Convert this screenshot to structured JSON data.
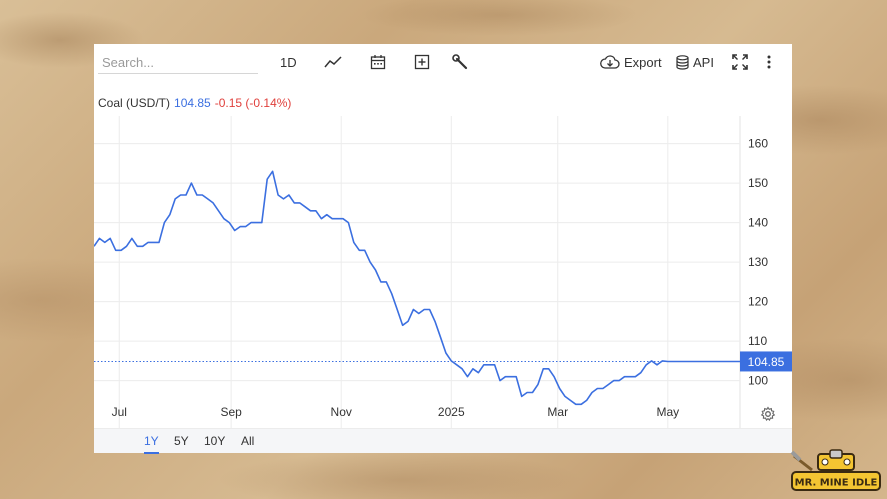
{
  "toolbar": {
    "search_placeholder": "Search...",
    "interval_label": "1D",
    "export_label": "Export",
    "api_label": "API"
  },
  "quote": {
    "name": "Coal (USD/T)",
    "price": "104.85",
    "change": "-0.15 (-0.14%)"
  },
  "ranges": [
    {
      "label": "1Y",
      "active": true
    },
    {
      "label": "5Y",
      "active": false
    },
    {
      "label": "10Y",
      "active": false
    },
    {
      "label": "All",
      "active": false
    }
  ],
  "branding": {
    "logo_text": "MR. MINE IDLE"
  },
  "colors": {
    "line": "#3b6fe0",
    "negative": "#e0403c",
    "price_tag_bg": "#3b6fe0"
  },
  "chart_data": {
    "type": "line",
    "title": "",
    "xlabel": "",
    "ylabel": "",
    "x_range": [
      "2024-06-17",
      "2025-06-10"
    ],
    "ylim": [
      88,
      167
    ],
    "yticks": [
      100,
      110,
      120,
      130,
      140,
      150,
      160
    ],
    "xticks": [
      {
        "date": "2024-07-01",
        "label": "Jul"
      },
      {
        "date": "2024-09-01",
        "label": "Sep"
      },
      {
        "date": "2024-11-01",
        "label": "Nov"
      },
      {
        "date": "2025-01-01",
        "label": "2025"
      },
      {
        "date": "2025-03-01",
        "label": "Mar"
      },
      {
        "date": "2025-05-01",
        "label": "May"
      }
    ],
    "grid": true,
    "last_value": 104.85,
    "series": [
      {
        "name": "",
        "x": [
          "2024-06-17",
          "2024-06-20",
          "2024-06-23",
          "2024-06-26",
          "2024-06-29",
          "2024-07-02",
          "2024-07-05",
          "2024-07-08",
          "2024-07-11",
          "2024-07-14",
          "2024-07-17",
          "2024-07-20",
          "2024-07-23",
          "2024-07-26",
          "2024-07-29",
          "2024-08-01",
          "2024-08-04",
          "2024-08-07",
          "2024-08-10",
          "2024-08-13",
          "2024-08-16",
          "2024-08-19",
          "2024-08-22",
          "2024-08-25",
          "2024-08-28",
          "2024-08-31",
          "2024-09-03",
          "2024-09-06",
          "2024-09-09",
          "2024-09-12",
          "2024-09-15",
          "2024-09-18",
          "2024-09-21",
          "2024-09-24",
          "2024-09-27",
          "2024-09-30",
          "2024-10-03",
          "2024-10-06",
          "2024-10-09",
          "2024-10-12",
          "2024-10-15",
          "2024-10-18",
          "2024-10-21",
          "2024-10-24",
          "2024-10-27",
          "2024-10-30",
          "2024-11-02",
          "2024-11-05",
          "2024-11-08",
          "2024-11-11",
          "2024-11-14",
          "2024-11-17",
          "2024-11-20",
          "2024-11-23",
          "2024-11-26",
          "2024-11-29",
          "2024-12-02",
          "2024-12-05",
          "2024-12-08",
          "2024-12-11",
          "2024-12-14",
          "2024-12-17",
          "2024-12-20",
          "2024-12-23",
          "2024-12-26",
          "2024-12-29",
          "2025-01-01",
          "2025-01-04",
          "2025-01-07",
          "2025-01-10",
          "2025-01-13",
          "2025-01-16",
          "2025-01-19",
          "2025-01-22",
          "2025-01-25",
          "2025-01-28",
          "2025-01-31",
          "2025-02-03",
          "2025-02-06",
          "2025-02-09",
          "2025-02-12",
          "2025-02-15",
          "2025-02-18",
          "2025-02-21",
          "2025-02-24",
          "2025-02-27",
          "2025-03-02",
          "2025-03-05",
          "2025-03-08",
          "2025-03-11",
          "2025-03-14",
          "2025-03-17",
          "2025-03-20",
          "2025-03-23",
          "2025-03-26",
          "2025-03-29",
          "2025-04-01",
          "2025-04-04",
          "2025-04-07",
          "2025-04-10",
          "2025-04-13",
          "2025-04-16",
          "2025-04-19",
          "2025-04-22",
          "2025-04-25",
          "2025-04-28",
          "2025-05-01",
          "2025-05-04",
          "2025-05-07",
          "2025-05-10",
          "2025-05-13",
          "2025-05-16",
          "2025-05-19",
          "2025-05-22",
          "2025-05-25",
          "2025-05-28",
          "2025-05-31",
          "2025-06-03",
          "2025-06-06",
          "2025-06-10"
        ],
        "y": [
          134,
          136,
          135,
          136,
          133,
          133,
          134,
          136,
          134,
          134,
          135,
          135,
          135,
          140,
          142,
          146,
          147,
          147,
          150,
          147,
          147,
          146,
          145,
          143,
          141,
          140,
          138,
          139,
          139,
          140,
          140,
          140,
          151,
          153,
          147,
          146,
          147,
          145,
          145,
          144,
          143,
          143,
          141,
          142,
          141,
          141,
          141,
          140,
          135,
          133,
          133,
          130,
          128,
          125,
          125,
          122,
          118,
          114,
          115,
          118,
          117,
          118,
          118,
          115,
          111,
          107,
          105,
          104,
          103,
          101,
          103,
          102,
          104,
          104,
          104,
          100,
          101,
          101,
          101,
          96,
          97,
          97,
          99,
          103,
          103,
          101,
          98,
          96,
          95,
          94,
          94,
          95,
          97,
          98,
          98,
          99,
          100,
          100,
          101,
          101,
          101,
          102,
          104,
          105,
          104,
          105,
          104.85,
          104.85,
          104.85,
          104.85,
          104.85,
          104.85,
          104.85,
          104.85,
          104.85,
          104.85,
          104.85,
          104.85,
          104.85,
          104.85
        ]
      }
    ]
  }
}
